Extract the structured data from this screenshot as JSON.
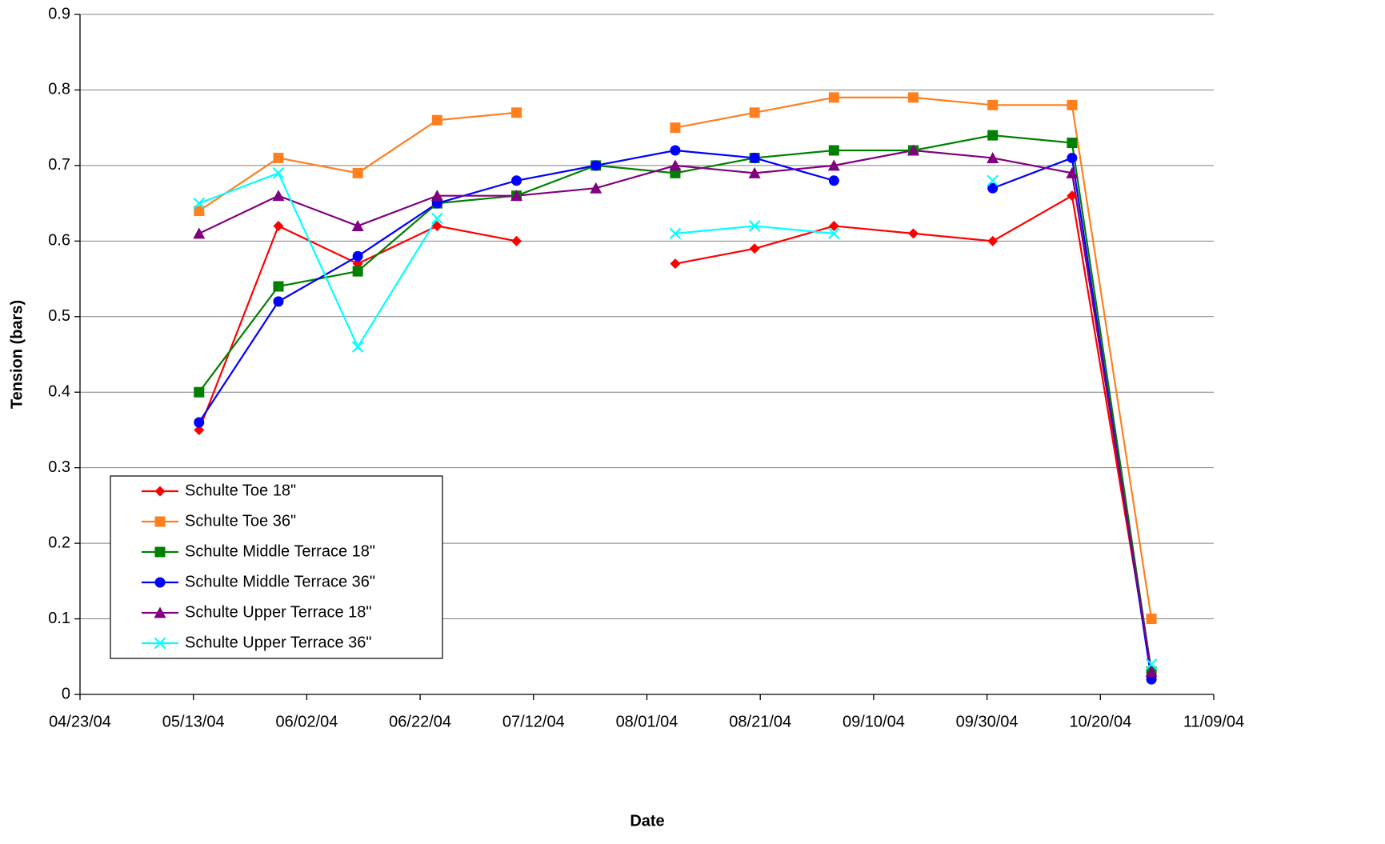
{
  "chart_data": {
    "type": "line",
    "y_label": "Tension (bars)",
    "x_label": "Date",
    "x": [
      "2004-05-14",
      "2004-05-28",
      "2004-06-11",
      "2004-06-25",
      "2004-07-09",
      "2004-07-23",
      "2004-08-06",
      "2004-08-20",
      "2004-09-03",
      "2004-09-17",
      "2004-10-01",
      "2004-10-15",
      "2004-10-29"
    ],
    "xlim": [
      "2004-04-23",
      "2004-11-09"
    ],
    "xticks": [
      {
        "value": "2004-04-23",
        "label": "04/23/04"
      },
      {
        "value": "2004-05-13",
        "label": "05/13/04"
      },
      {
        "value": "2004-06-02",
        "label": "06/02/04"
      },
      {
        "value": "2004-06-22",
        "label": "06/22/04"
      },
      {
        "value": "2004-07-12",
        "label": "07/12/04"
      },
      {
        "value": "2004-08-01",
        "label": "08/01/04"
      },
      {
        "value": "2004-08-21",
        "label": "08/21/04"
      },
      {
        "value": "2004-09-10",
        "label": "09/10/04"
      },
      {
        "value": "2004-09-30",
        "label": "09/30/04"
      },
      {
        "value": "2004-10-20",
        "label": "10/20/04"
      },
      {
        "value": "2004-11-09",
        "label": "11/09/04"
      }
    ],
    "ylim": [
      0,
      0.9
    ],
    "yticks": [
      0,
      0.1,
      0.2,
      0.3,
      0.4,
      0.5,
      0.6,
      0.7,
      0.8,
      0.9
    ],
    "grid": true,
    "legend": "lower-left",
    "series": [
      {
        "name": "Schulte Toe 18\"",
        "color": "#ff0000",
        "marker": "diamond",
        "values": [
          0.35,
          0.62,
          0.57,
          0.62,
          0.6,
          null,
          0.57,
          0.59,
          0.62,
          0.61,
          0.6,
          0.66,
          0.03
        ]
      },
      {
        "name": "Schulte Toe 36\"",
        "color": "#ff7f1f",
        "marker": "square",
        "values": [
          0.64,
          0.71,
          0.69,
          0.76,
          0.77,
          null,
          0.75,
          0.77,
          0.79,
          0.79,
          0.78,
          0.78,
          0.1
        ]
      },
      {
        "name": "Schulte Middle Terrace 18\"",
        "color": "#008000",
        "marker": "square",
        "values": [
          0.4,
          0.54,
          0.56,
          0.65,
          0.66,
          0.7,
          0.69,
          0.71,
          0.72,
          0.72,
          0.74,
          0.73,
          0.03
        ]
      },
      {
        "name": "Schulte Middle Terrace 36\"",
        "color": "#0000ff",
        "marker": "circle",
        "values": [
          0.36,
          0.52,
          0.58,
          0.65,
          0.68,
          0.7,
          0.72,
          0.71,
          0.68,
          null,
          0.67,
          0.71,
          0.02
        ]
      },
      {
        "name": "Schulte Upper Terrace 18\"",
        "color": "#800080",
        "marker": "triangle",
        "values": [
          0.61,
          0.66,
          0.62,
          0.66,
          0.66,
          0.67,
          0.7,
          0.69,
          0.7,
          0.72,
          0.71,
          0.69,
          0.03
        ]
      },
      {
        "name": "Schulte Upper Terrace 36\"",
        "color": "#00ffff",
        "marker": "x",
        "values": [
          0.65,
          0.69,
          0.46,
          0.63,
          null,
          null,
          0.61,
          0.62,
          0.61,
          null,
          0.68,
          null,
          0.04
        ]
      }
    ]
  }
}
